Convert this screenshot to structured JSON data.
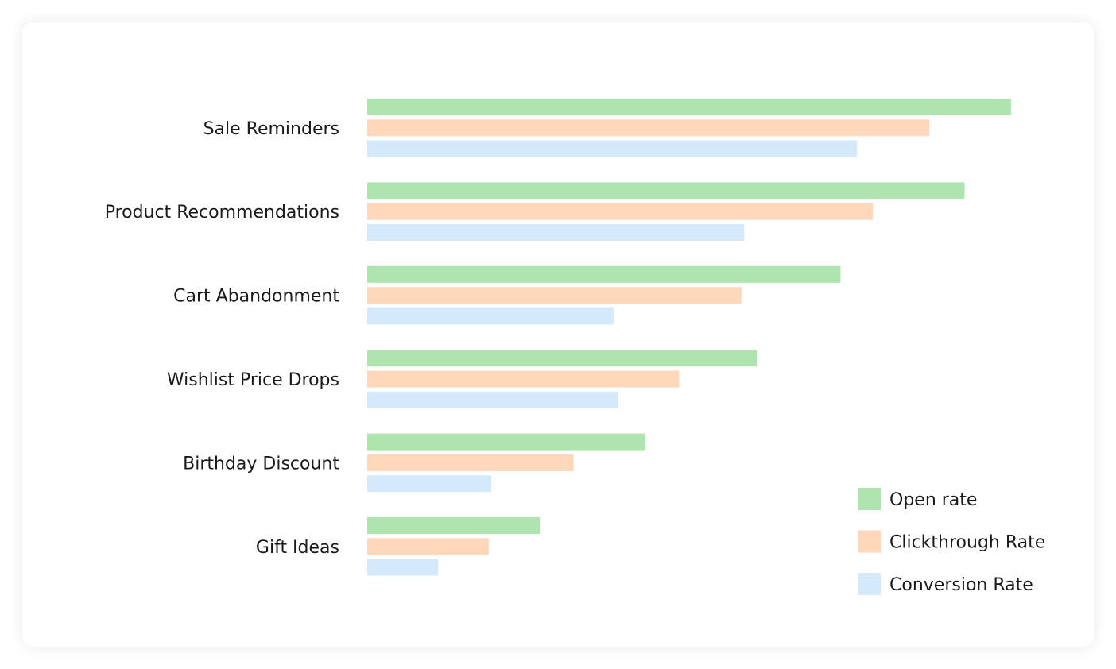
{
  "chart_data": {
    "type": "bar",
    "orientation": "horizontal",
    "categories": [
      "Sale Reminders",
      "Product Recommendations",
      "Cart Abandonment",
      "Wishlist Price Drops",
      "Birthday Discount",
      "Gift Ideas"
    ],
    "series": [
      {
        "name": "Open rate",
        "color": "#b0e4ae",
        "values": [
          0.97,
          0.9,
          0.713,
          0.587,
          0.419,
          0.26
        ]
      },
      {
        "name": "Clickthrough Rate",
        "color": "#ffd7bb",
        "values": [
          0.847,
          0.762,
          0.564,
          0.47,
          0.311,
          0.183
        ]
      },
      {
        "name": "Conversion Rate",
        "color": "#d4eafb",
        "values": [
          0.738,
          0.568,
          0.371,
          0.378,
          0.187,
          0.107
        ]
      }
    ],
    "xlim": [
      0,
      1
    ],
    "xlabel": "",
    "ylabel": "",
    "title": "",
    "grid": false,
    "axes_visible": false,
    "legend_position": "bottom-right"
  }
}
